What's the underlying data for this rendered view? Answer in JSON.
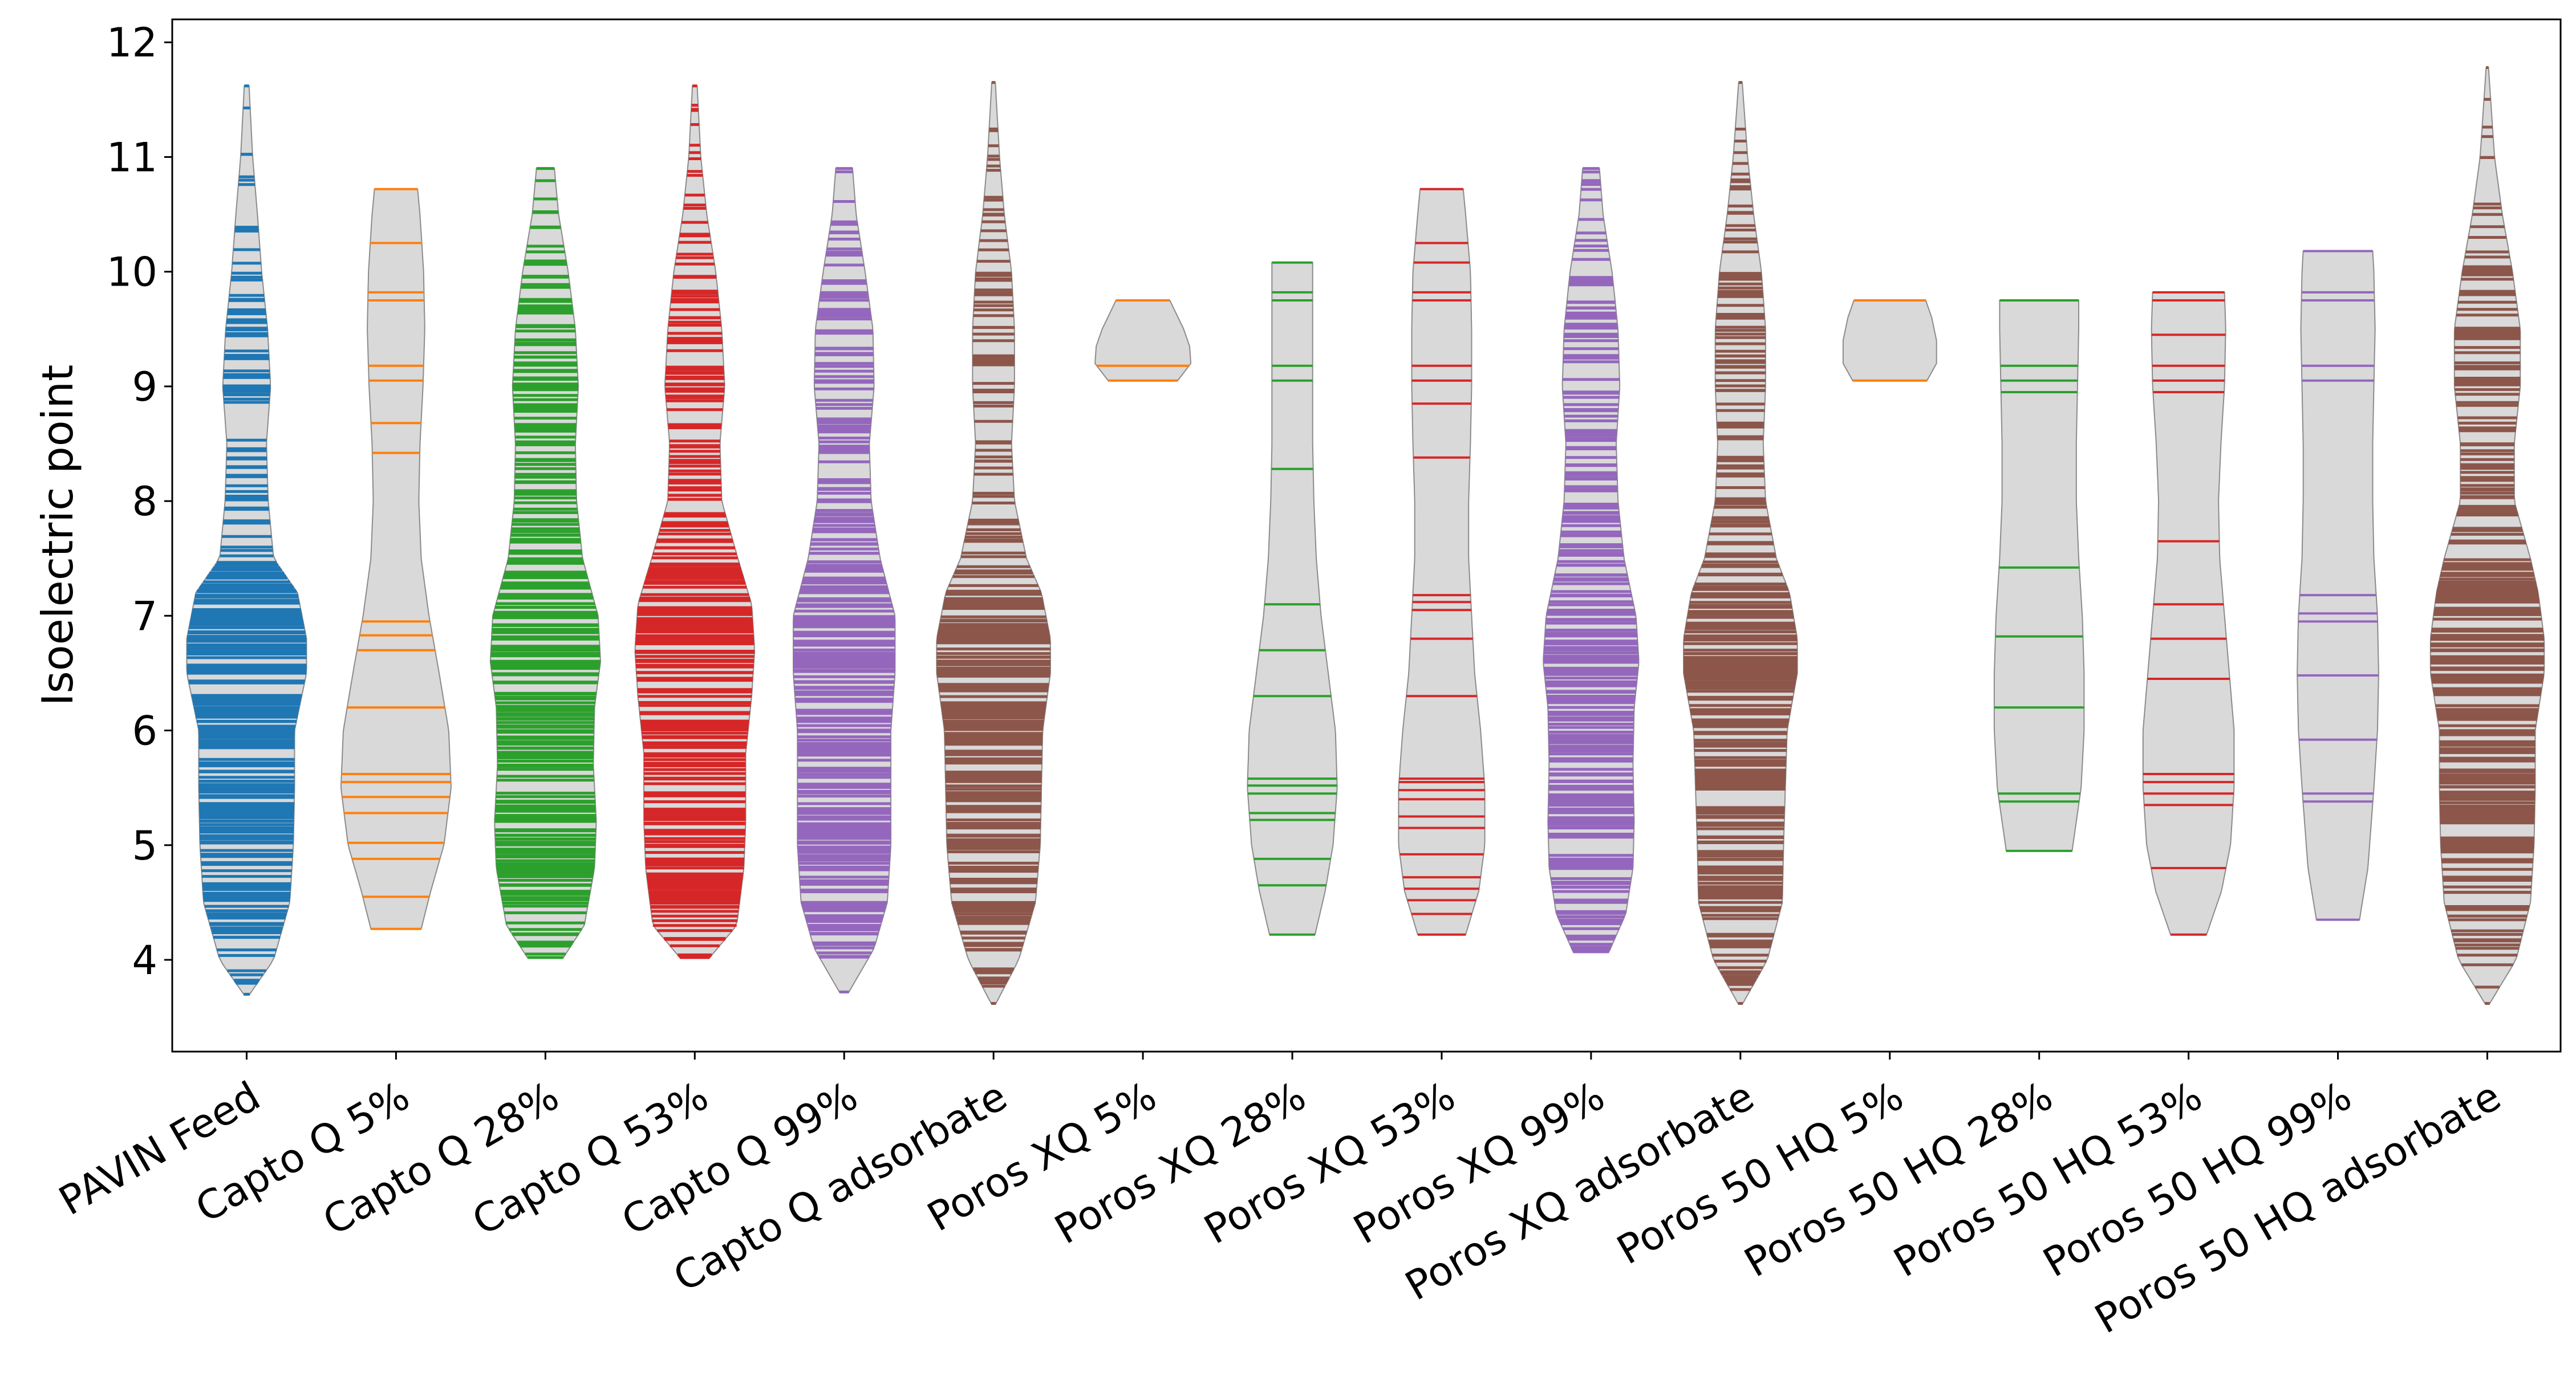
{
  "chart_data": {
    "type": "violin",
    "ylabel": "Isoelectric point",
    "ylim": [
      3.2,
      12.2
    ],
    "yticks": [
      "4",
      "5",
      "6",
      "7",
      "8",
      "9",
      "10",
      "11",
      "12"
    ],
    "grid": false,
    "body_color": "#d9d9d9",
    "body_edge_color": "#8c8c8c",
    "categories": [
      "PAVIN Feed",
      "Capto Q 5%",
      "Capto Q 28%",
      "Capto Q 53%",
      "Capto Q 99%",
      "Capto Q adsorbate",
      "Poros XQ 5%",
      "Poros XQ 28%",
      "Poros XQ 53%",
      "Poros XQ 99%",
      "Poros XQ adsorbate",
      "Poros 50 HQ 5%",
      "Poros 50 HQ 28%",
      "Poros 50 HQ 53%",
      "Poros 50 HQ 99%",
      "Poros 50 HQ adsorbate"
    ],
    "series": [
      {
        "category": "PAVIN Feed",
        "color": "#1f77b4",
        "min": 3.7,
        "max": 11.62,
        "maxwidth": 0.8,
        "density_mode": "dense",
        "profile": [
          [
            3.7,
            0.05
          ],
          [
            4.0,
            0.45
          ],
          [
            4.5,
            0.72
          ],
          [
            5.0,
            0.78
          ],
          [
            5.5,
            0.8
          ],
          [
            6.0,
            0.8
          ],
          [
            6.5,
            1.0
          ],
          [
            6.8,
            1.0
          ],
          [
            7.2,
            0.85
          ],
          [
            7.5,
            0.45
          ],
          [
            8.0,
            0.36
          ],
          [
            8.5,
            0.33
          ],
          [
            9.0,
            0.4
          ],
          [
            9.5,
            0.35
          ],
          [
            10.0,
            0.25
          ],
          [
            10.5,
            0.18
          ],
          [
            11.0,
            0.1
          ],
          [
            11.62,
            0.04
          ]
        ]
      },
      {
        "category": "Capto Q 5%",
        "color": "#ff7f0e",
        "min": 4.27,
        "max": 10.72,
        "maxwidth": 0.8,
        "density_mode": "sparse",
        "profile": [
          [
            4.27,
            0.42
          ],
          [
            4.6,
            0.58
          ],
          [
            5.0,
            0.8
          ],
          [
            5.5,
            0.92
          ],
          [
            6.0,
            0.88
          ],
          [
            6.5,
            0.72
          ],
          [
            7.0,
            0.55
          ],
          [
            7.5,
            0.42
          ],
          [
            8.0,
            0.38
          ],
          [
            8.5,
            0.4
          ],
          [
            9.0,
            0.45
          ],
          [
            9.5,
            0.48
          ],
          [
            10.0,
            0.46
          ],
          [
            10.5,
            0.4
          ],
          [
            10.72,
            0.36
          ]
        ],
        "values": [
          4.27,
          4.55,
          4.88,
          5.02,
          5.28,
          5.42,
          5.55,
          5.62,
          6.2,
          6.7,
          6.83,
          6.95,
          8.42,
          8.68,
          9.05,
          9.18,
          9.75,
          9.82,
          10.25,
          10.72
        ]
      },
      {
        "category": "Capto Q 28%",
        "color": "#2ca02c",
        "min": 4.02,
        "max": 10.9,
        "maxwidth": 0.8,
        "density_mode": "dense",
        "profile": [
          [
            4.02,
            0.3
          ],
          [
            4.3,
            0.65
          ],
          [
            4.8,
            0.82
          ],
          [
            5.2,
            0.85
          ],
          [
            5.7,
            0.8
          ],
          [
            6.2,
            0.82
          ],
          [
            6.6,
            0.92
          ],
          [
            7.0,
            0.88
          ],
          [
            7.5,
            0.62
          ],
          [
            8.0,
            0.52
          ],
          [
            8.5,
            0.5
          ],
          [
            9.0,
            0.55
          ],
          [
            9.5,
            0.5
          ],
          [
            10.0,
            0.38
          ],
          [
            10.5,
            0.22
          ],
          [
            10.9,
            0.15
          ]
        ]
      },
      {
        "category": "Capto Q 53%",
        "color": "#d62728",
        "min": 4.02,
        "max": 11.62,
        "maxwidth": 0.8,
        "density_mode": "dense",
        "profile": [
          [
            4.02,
            0.25
          ],
          [
            4.3,
            0.7
          ],
          [
            4.8,
            0.82
          ],
          [
            5.2,
            0.85
          ],
          [
            5.8,
            0.85
          ],
          [
            6.3,
            0.95
          ],
          [
            6.7,
            1.0
          ],
          [
            7.1,
            0.95
          ],
          [
            7.5,
            0.72
          ],
          [
            8.0,
            0.45
          ],
          [
            8.5,
            0.42
          ],
          [
            9.0,
            0.5
          ],
          [
            9.5,
            0.45
          ],
          [
            10.0,
            0.35
          ],
          [
            10.5,
            0.2
          ],
          [
            11.0,
            0.1
          ],
          [
            11.62,
            0.04
          ]
        ]
      },
      {
        "category": "Capto Q 99%",
        "color": "#9467bd",
        "min": 3.72,
        "max": 10.9,
        "maxwidth": 0.8,
        "density_mode": "dense",
        "profile": [
          [
            3.72,
            0.08
          ],
          [
            4.1,
            0.5
          ],
          [
            4.5,
            0.72
          ],
          [
            5.0,
            0.78
          ],
          [
            5.5,
            0.78
          ],
          [
            6.0,
            0.78
          ],
          [
            6.5,
            0.85
          ],
          [
            7.0,
            0.85
          ],
          [
            7.5,
            0.6
          ],
          [
            8.0,
            0.45
          ],
          [
            8.5,
            0.42
          ],
          [
            9.0,
            0.5
          ],
          [
            9.5,
            0.48
          ],
          [
            10.0,
            0.35
          ],
          [
            10.5,
            0.2
          ],
          [
            10.9,
            0.14
          ]
        ]
      },
      {
        "category": "Capto Q adsorbate",
        "color": "#8c564b",
        "min": 3.62,
        "max": 11.65,
        "maxwidth": 0.8,
        "density_mode": "dense",
        "profile": [
          [
            3.62,
            0.04
          ],
          [
            4.0,
            0.42
          ],
          [
            4.5,
            0.7
          ],
          [
            5.0,
            0.78
          ],
          [
            5.5,
            0.8
          ],
          [
            6.0,
            0.82
          ],
          [
            6.5,
            0.95
          ],
          [
            6.8,
            0.95
          ],
          [
            7.2,
            0.8
          ],
          [
            7.5,
            0.55
          ],
          [
            8.0,
            0.35
          ],
          [
            8.5,
            0.3
          ],
          [
            9.0,
            0.35
          ],
          [
            9.5,
            0.35
          ],
          [
            10.0,
            0.3
          ],
          [
            10.5,
            0.18
          ],
          [
            11.0,
            0.1
          ],
          [
            11.65,
            0.03
          ]
        ]
      },
      {
        "category": "Poros XQ 5%",
        "color": "#ff7f0e",
        "min": 9.05,
        "max": 9.75,
        "maxwidth": 0.8,
        "density_mode": "sparse",
        "profile": [
          [
            9.05,
            0.58
          ],
          [
            9.2,
            0.8
          ],
          [
            9.35,
            0.78
          ],
          [
            9.5,
            0.68
          ],
          [
            9.75,
            0.45
          ]
        ],
        "values": [
          9.05,
          9.18,
          9.75
        ]
      },
      {
        "category": "Poros XQ 28%",
        "color": "#2ca02c",
        "min": 4.22,
        "max": 10.08,
        "maxwidth": 0.8,
        "density_mode": "sparse",
        "profile": [
          [
            4.22,
            0.38
          ],
          [
            4.6,
            0.55
          ],
          [
            5.0,
            0.68
          ],
          [
            5.5,
            0.75
          ],
          [
            6.0,
            0.72
          ],
          [
            6.5,
            0.6
          ],
          [
            7.0,
            0.48
          ],
          [
            7.5,
            0.4
          ],
          [
            8.0,
            0.36
          ],
          [
            8.5,
            0.34
          ],
          [
            9.0,
            0.34
          ],
          [
            9.5,
            0.34
          ],
          [
            10.08,
            0.34
          ]
        ],
        "values": [
          4.22,
          4.65,
          4.88,
          5.22,
          5.28,
          5.45,
          5.52,
          5.58,
          6.3,
          6.7,
          7.1,
          8.28,
          9.05,
          9.18,
          9.75,
          9.82,
          10.08
        ]
      },
      {
        "category": "Poros XQ 53%",
        "color": "#d62728",
        "min": 4.22,
        "max": 10.72,
        "maxwidth": 0.8,
        "density_mode": "sparse",
        "profile": [
          [
            4.22,
            0.4
          ],
          [
            4.6,
            0.62
          ],
          [
            5.0,
            0.72
          ],
          [
            5.5,
            0.72
          ],
          [
            6.0,
            0.65
          ],
          [
            6.5,
            0.55
          ],
          [
            7.0,
            0.5
          ],
          [
            7.5,
            0.45
          ],
          [
            8.0,
            0.45
          ],
          [
            8.5,
            0.48
          ],
          [
            9.0,
            0.5
          ],
          [
            9.5,
            0.5
          ],
          [
            10.0,
            0.48
          ],
          [
            10.5,
            0.4
          ],
          [
            10.72,
            0.36
          ]
        ],
        "values": [
          4.22,
          4.4,
          4.52,
          4.62,
          4.72,
          4.92,
          5.15,
          5.25,
          5.4,
          5.48,
          5.55,
          5.58,
          6.3,
          6.8,
          7.05,
          7.12,
          7.18,
          8.38,
          8.85,
          9.05,
          9.18,
          9.75,
          9.82,
          10.08,
          10.25,
          10.72
        ]
      },
      {
        "category": "Poros XQ 99%",
        "color": "#9467bd",
        "min": 4.07,
        "max": 10.9,
        "maxwidth": 0.8,
        "density_mode": "dense",
        "profile": [
          [
            4.07,
            0.3
          ],
          [
            4.4,
            0.58
          ],
          [
            4.8,
            0.7
          ],
          [
            5.2,
            0.72
          ],
          [
            5.7,
            0.7
          ],
          [
            6.2,
            0.72
          ],
          [
            6.6,
            0.8
          ],
          [
            7.0,
            0.75
          ],
          [
            7.5,
            0.55
          ],
          [
            8.0,
            0.45
          ],
          [
            8.5,
            0.42
          ],
          [
            9.0,
            0.48
          ],
          [
            9.5,
            0.45
          ],
          [
            10.0,
            0.35
          ],
          [
            10.5,
            0.2
          ],
          [
            10.9,
            0.14
          ]
        ]
      },
      {
        "category": "Poros XQ adsorbate",
        "color": "#8c564b",
        "min": 3.62,
        "max": 11.65,
        "maxwidth": 0.8,
        "density_mode": "dense",
        "profile": [
          [
            3.62,
            0.04
          ],
          [
            4.0,
            0.45
          ],
          [
            4.5,
            0.7
          ],
          [
            5.0,
            0.72
          ],
          [
            5.5,
            0.75
          ],
          [
            6.0,
            0.78
          ],
          [
            6.5,
            0.95
          ],
          [
            6.8,
            0.95
          ],
          [
            7.2,
            0.82
          ],
          [
            7.5,
            0.6
          ],
          [
            8.0,
            0.42
          ],
          [
            8.5,
            0.38
          ],
          [
            9.0,
            0.42
          ],
          [
            9.5,
            0.42
          ],
          [
            10.0,
            0.35
          ],
          [
            10.5,
            0.22
          ],
          [
            11.0,
            0.12
          ],
          [
            11.65,
            0.03
          ]
        ]
      },
      {
        "category": "Poros 50 HQ 5%",
        "color": "#ff7f0e",
        "min": 9.05,
        "max": 9.75,
        "maxwidth": 0.8,
        "density_mode": "sparse",
        "profile": [
          [
            9.05,
            0.62
          ],
          [
            9.2,
            0.78
          ],
          [
            9.4,
            0.78
          ],
          [
            9.6,
            0.7
          ],
          [
            9.75,
            0.6
          ]
        ],
        "values": [
          9.05,
          9.75
        ]
      },
      {
        "category": "Poros 50 HQ 28%",
        "color": "#2ca02c",
        "min": 4.95,
        "max": 9.75,
        "maxwidth": 0.8,
        "density_mode": "sparse",
        "profile": [
          [
            4.95,
            0.55
          ],
          [
            5.5,
            0.7
          ],
          [
            6.0,
            0.75
          ],
          [
            6.5,
            0.75
          ],
          [
            7.0,
            0.72
          ],
          [
            7.5,
            0.66
          ],
          [
            8.0,
            0.62
          ],
          [
            8.5,
            0.62
          ],
          [
            9.0,
            0.64
          ],
          [
            9.5,
            0.66
          ],
          [
            9.75,
            0.66
          ]
        ],
        "values": [
          4.95,
          5.38,
          5.45,
          6.2,
          6.82,
          7.42,
          8.95,
          9.05,
          9.18,
          9.75
        ]
      },
      {
        "category": "Poros 50 HQ 53%",
        "color": "#d62728",
        "min": 4.22,
        "max": 9.82,
        "maxwidth": 0.8,
        "density_mode": "sparse",
        "profile": [
          [
            4.22,
            0.3
          ],
          [
            4.6,
            0.55
          ],
          [
            5.0,
            0.7
          ],
          [
            5.5,
            0.76
          ],
          [
            6.0,
            0.76
          ],
          [
            6.5,
            0.68
          ],
          [
            7.0,
            0.6
          ],
          [
            7.5,
            0.52
          ],
          [
            8.0,
            0.5
          ],
          [
            8.5,
            0.54
          ],
          [
            9.0,
            0.6
          ],
          [
            9.5,
            0.62
          ],
          [
            9.82,
            0.6
          ]
        ],
        "values": [
          4.22,
          4.8,
          5.35,
          5.45,
          5.55,
          5.62,
          6.45,
          6.8,
          7.1,
          7.65,
          8.95,
          9.05,
          9.18,
          9.45,
          9.75,
          9.82
        ]
      },
      {
        "category": "Poros 50 HQ 99%",
        "color": "#9467bd",
        "min": 4.35,
        "max": 10.18,
        "maxwidth": 0.8,
        "density_mode": "sparse",
        "profile": [
          [
            4.35,
            0.36
          ],
          [
            4.8,
            0.5
          ],
          [
            5.5,
            0.6
          ],
          [
            6.0,
            0.66
          ],
          [
            6.5,
            0.68
          ],
          [
            7.0,
            0.66
          ],
          [
            7.5,
            0.6
          ],
          [
            8.0,
            0.58
          ],
          [
            8.5,
            0.58
          ],
          [
            9.0,
            0.6
          ],
          [
            9.5,
            0.62
          ],
          [
            10.0,
            0.6
          ],
          [
            10.18,
            0.58
          ]
        ],
        "values": [
          4.35,
          5.38,
          5.45,
          5.92,
          6.48,
          6.95,
          7.02,
          7.18,
          9.05,
          9.18,
          9.75,
          9.82,
          10.18
        ]
      },
      {
        "category": "Poros 50 HQ adsorbate",
        "color": "#8c564b",
        "min": 3.62,
        "max": 11.78,
        "maxwidth": 0.8,
        "density_mode": "dense",
        "profile": [
          [
            3.62,
            0.04
          ],
          [
            4.0,
            0.48
          ],
          [
            4.5,
            0.72
          ],
          [
            5.0,
            0.78
          ],
          [
            5.5,
            0.8
          ],
          [
            6.0,
            0.8
          ],
          [
            6.5,
            0.95
          ],
          [
            6.8,
            0.95
          ],
          [
            7.2,
            0.85
          ],
          [
            7.5,
            0.72
          ],
          [
            8.0,
            0.45
          ],
          [
            8.5,
            0.45
          ],
          [
            9.0,
            0.55
          ],
          [
            9.5,
            0.55
          ],
          [
            10.0,
            0.42
          ],
          [
            10.5,
            0.25
          ],
          [
            11.0,
            0.12
          ],
          [
            11.78,
            0.02
          ]
        ]
      }
    ]
  }
}
